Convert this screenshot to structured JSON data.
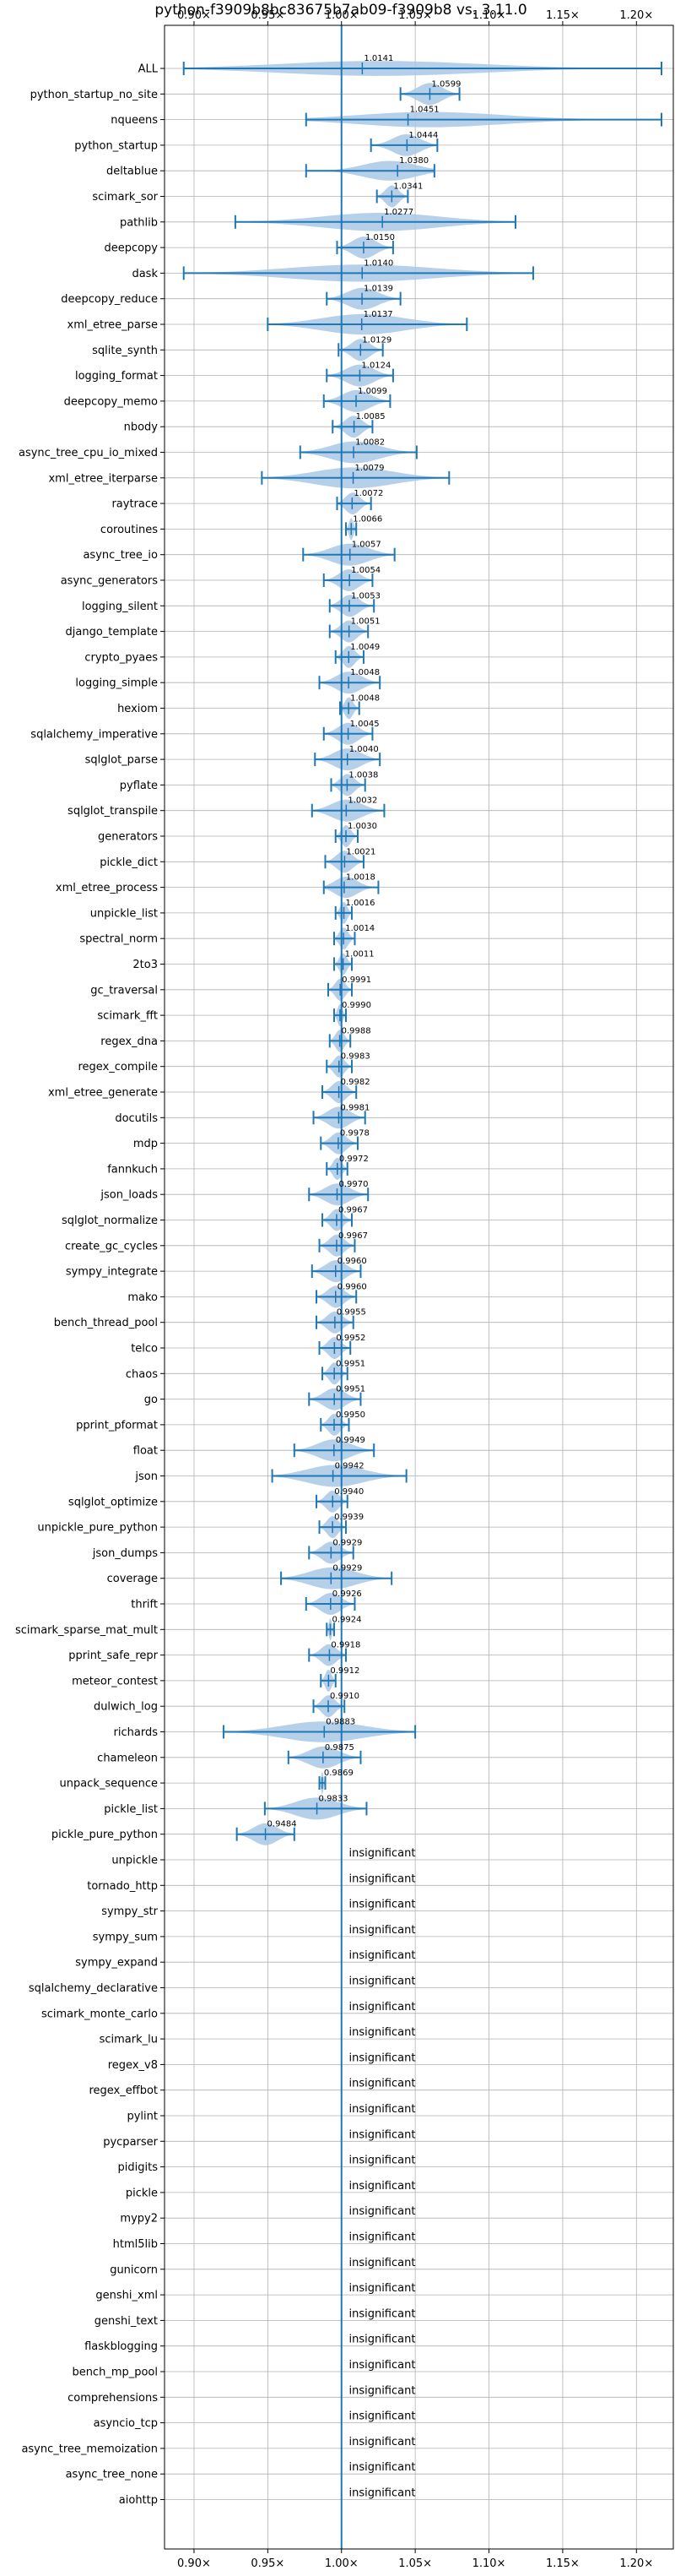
{
  "chart_data": {
    "type": "violin",
    "title": "python-f3909b8bc83675b7ab09-f3909b8 vs. 3.11.0",
    "xlim": [
      0.88,
      1.225
    ],
    "xticks": [
      0.9,
      0.95,
      1.0,
      1.05,
      1.1,
      1.15,
      1.2
    ],
    "xtick_labels": [
      "0.90×",
      "0.95×",
      "1.00×",
      "1.05×",
      "1.10×",
      "1.15×",
      "1.20×"
    ],
    "reference_line": 1.0,
    "grid": true,
    "insignificant_text": "insignificant",
    "colors": {
      "violin_fill": "#a9c8e6",
      "line": "#1f77b4",
      "grid": "#b0b0b0"
    },
    "benchmarks": [
      {
        "name": "ALL",
        "label": "1.0141",
        "value": 1.0141,
        "min": 0.893,
        "max": 1.217
      },
      {
        "name": "python_startup_no_site",
        "label": "1.0599",
        "value": 1.0599,
        "min": 1.04,
        "max": 1.08
      },
      {
        "name": "nqueens",
        "label": "1.0451",
        "value": 1.0451,
        "min": 0.976,
        "max": 1.217
      },
      {
        "name": "python_startup",
        "label": "1.0444",
        "value": 1.0444,
        "min": 1.02,
        "max": 1.065
      },
      {
        "name": "deltablue",
        "label": "1.0380",
        "value": 1.038,
        "min": 0.976,
        "max": 1.063
      },
      {
        "name": "scimark_sor",
        "label": "1.0341",
        "value": 1.0341,
        "min": 1.024,
        "max": 1.045
      },
      {
        "name": "pathlib",
        "label": "1.0277",
        "value": 1.0277,
        "min": 0.928,
        "max": 1.118
      },
      {
        "name": "deepcopy",
        "label": "1.0150",
        "value": 1.015,
        "min": 0.997,
        "max": 1.035
      },
      {
        "name": "dask",
        "label": "1.0140",
        "value": 1.014,
        "min": 0.893,
        "max": 1.13
      },
      {
        "name": "deepcopy_reduce",
        "label": "1.0139",
        "value": 1.0139,
        "min": 0.99,
        "max": 1.04
      },
      {
        "name": "xml_etree_parse",
        "label": "1.0137",
        "value": 1.0137,
        "min": 0.95,
        "max": 1.085
      },
      {
        "name": "sqlite_synth",
        "label": "1.0129",
        "value": 1.0129,
        "min": 0.998,
        "max": 1.028
      },
      {
        "name": "logging_format",
        "label": "1.0124",
        "value": 1.0124,
        "min": 0.99,
        "max": 1.035
      },
      {
        "name": "deepcopy_memo",
        "label": "1.0099",
        "value": 1.0099,
        "min": 0.988,
        "max": 1.033
      },
      {
        "name": "nbody",
        "label": "1.0085",
        "value": 1.0085,
        "min": 0.994,
        "max": 1.021
      },
      {
        "name": "async_tree_cpu_io_mixed",
        "label": "1.0082",
        "value": 1.0082,
        "min": 0.972,
        "max": 1.051
      },
      {
        "name": "xml_etree_iterparse",
        "label": "1.0079",
        "value": 1.0079,
        "min": 0.946,
        "max": 1.073
      },
      {
        "name": "raytrace",
        "label": "1.0072",
        "value": 1.0072,
        "min": 0.997,
        "max": 1.02
      },
      {
        "name": "coroutines",
        "label": "1.0066",
        "value": 1.0066,
        "min": 1.003,
        "max": 1.01
      },
      {
        "name": "async_tree_io",
        "label": "1.0057",
        "value": 1.0057,
        "min": 0.974,
        "max": 1.036
      },
      {
        "name": "async_generators",
        "label": "1.0054",
        "value": 1.0054,
        "min": 0.988,
        "max": 1.021
      },
      {
        "name": "logging_silent",
        "label": "1.0053",
        "value": 1.0053,
        "min": 0.992,
        "max": 1.022
      },
      {
        "name": "django_template",
        "label": "1.0051",
        "value": 1.0051,
        "min": 0.992,
        "max": 1.018
      },
      {
        "name": "crypto_pyaes",
        "label": "1.0049",
        "value": 1.0049,
        "min": 0.996,
        "max": 1.015
      },
      {
        "name": "logging_simple",
        "label": "1.0048",
        "value": 1.0048,
        "min": 0.985,
        "max": 1.026
      },
      {
        "name": "hexiom",
        "label": "1.0048",
        "value": 1.0048,
        "min": 0.999,
        "max": 1.012
      },
      {
        "name": "sqlalchemy_imperative",
        "label": "1.0045",
        "value": 1.0045,
        "min": 0.988,
        "max": 1.021
      },
      {
        "name": "sqlglot_parse",
        "label": "1.0040",
        "value": 1.004,
        "min": 0.982,
        "max": 1.026
      },
      {
        "name": "pyflate",
        "label": "1.0038",
        "value": 1.0038,
        "min": 0.993,
        "max": 1.016
      },
      {
        "name": "sqlglot_transpile",
        "label": "1.0032",
        "value": 1.0032,
        "min": 0.98,
        "max": 1.029
      },
      {
        "name": "generators",
        "label": "1.0030",
        "value": 1.003,
        "min": 0.996,
        "max": 1.011
      },
      {
        "name": "pickle_dict",
        "label": "1.0021",
        "value": 1.0021,
        "min": 0.989,
        "max": 1.015
      },
      {
        "name": "xml_etree_process",
        "label": "1.0018",
        "value": 1.0018,
        "min": 0.988,
        "max": 1.025
      },
      {
        "name": "unpickle_list",
        "label": "1.0016",
        "value": 1.0016,
        "min": 0.996,
        "max": 1.007
      },
      {
        "name": "spectral_norm",
        "label": "1.0014",
        "value": 1.0014,
        "min": 0.995,
        "max": 1.009
      },
      {
        "name": "2to3",
        "label": "1.0011",
        "value": 1.0011,
        "min": 0.995,
        "max": 1.007
      },
      {
        "name": "gc_traversal",
        "label": "0.9991",
        "value": 0.9991,
        "min": 0.991,
        "max": 1.007
      },
      {
        "name": "scimark_fft",
        "label": "0.9990",
        "value": 0.999,
        "min": 0.995,
        "max": 1.003
      },
      {
        "name": "regex_dna",
        "label": "0.9988",
        "value": 0.9988,
        "min": 0.992,
        "max": 1.006
      },
      {
        "name": "regex_compile",
        "label": "0.9983",
        "value": 0.9983,
        "min": 0.99,
        "max": 1.007
      },
      {
        "name": "xml_etree_generate",
        "label": "0.9982",
        "value": 0.9982,
        "min": 0.987,
        "max": 1.01
      },
      {
        "name": "docutils",
        "label": "0.9981",
        "value": 0.9981,
        "min": 0.981,
        "max": 1.016
      },
      {
        "name": "mdp",
        "label": "0.9978",
        "value": 0.9978,
        "min": 0.986,
        "max": 1.011
      },
      {
        "name": "fannkuch",
        "label": "0.9972",
        "value": 0.9972,
        "min": 0.99,
        "max": 1.004
      },
      {
        "name": "json_loads",
        "label": "0.9970",
        "value": 0.997,
        "min": 0.978,
        "max": 1.018
      },
      {
        "name": "sqlglot_normalize",
        "label": "0.9967",
        "value": 0.9967,
        "min": 0.987,
        "max": 1.007
      },
      {
        "name": "create_gc_cycles",
        "label": "0.9967",
        "value": 0.9967,
        "min": 0.985,
        "max": 1.009
      },
      {
        "name": "sympy_integrate",
        "label": "0.9960",
        "value": 0.996,
        "min": 0.98,
        "max": 1.013
      },
      {
        "name": "mako",
        "label": "0.9960",
        "value": 0.996,
        "min": 0.983,
        "max": 1.01
      },
      {
        "name": "bench_thread_pool",
        "label": "0.9955",
        "value": 0.9955,
        "min": 0.983,
        "max": 1.008
      },
      {
        "name": "telco",
        "label": "0.9952",
        "value": 0.9952,
        "min": 0.985,
        "max": 1.006
      },
      {
        "name": "chaos",
        "label": "0.9951",
        "value": 0.9951,
        "min": 0.987,
        "max": 1.004
      },
      {
        "name": "go",
        "label": "0.9951",
        "value": 0.9951,
        "min": 0.978,
        "max": 1.013
      },
      {
        "name": "pprint_pformat",
        "label": "0.9950",
        "value": 0.995,
        "min": 0.986,
        "max": 1.005
      },
      {
        "name": "float",
        "label": "0.9949",
        "value": 0.9949,
        "min": 0.968,
        "max": 1.022
      },
      {
        "name": "json",
        "label": "0.9942",
        "value": 0.9942,
        "min": 0.953,
        "max": 1.044
      },
      {
        "name": "sqlglot_optimize",
        "label": "0.9940",
        "value": 0.994,
        "min": 0.983,
        "max": 1.004
      },
      {
        "name": "unpickle_pure_python",
        "label": "0.9939",
        "value": 0.9939,
        "min": 0.985,
        "max": 1.003
      },
      {
        "name": "json_dumps",
        "label": "0.9929",
        "value": 0.9929,
        "min": 0.978,
        "max": 1.008
      },
      {
        "name": "coverage",
        "label": "0.9929",
        "value": 0.9929,
        "min": 0.959,
        "max": 1.034
      },
      {
        "name": "thrift",
        "label": "0.9926",
        "value": 0.9926,
        "min": 0.976,
        "max": 1.009
      },
      {
        "name": "scimark_sparse_mat_mult",
        "label": "0.9924",
        "value": 0.9924,
        "min": 0.99,
        "max": 0.995
      },
      {
        "name": "pprint_safe_repr",
        "label": "0.9918",
        "value": 0.9918,
        "min": 0.978,
        "max": 1.003
      },
      {
        "name": "meteor_contest",
        "label": "0.9912",
        "value": 0.9912,
        "min": 0.986,
        "max": 0.996
      },
      {
        "name": "dulwich_log",
        "label": "0.9910",
        "value": 0.991,
        "min": 0.981,
        "max": 1.002
      },
      {
        "name": "richards",
        "label": "0.9883",
        "value": 0.9883,
        "min": 0.92,
        "max": 1.05
      },
      {
        "name": "chameleon",
        "label": "0.9875",
        "value": 0.9875,
        "min": 0.964,
        "max": 1.013
      },
      {
        "name": "unpack_sequence",
        "label": "0.9869",
        "value": 0.9869,
        "min": 0.985,
        "max": 0.989
      },
      {
        "name": "pickle_list",
        "label": "0.9833",
        "value": 0.9833,
        "min": 0.948,
        "max": 1.017
      },
      {
        "name": "pickle_pure_python",
        "label": "0.9484",
        "value": 0.9484,
        "min": 0.929,
        "max": 0.968
      },
      {
        "name": "unpickle",
        "insignificant": true
      },
      {
        "name": "tornado_http",
        "insignificant": true
      },
      {
        "name": "sympy_str",
        "insignificant": true
      },
      {
        "name": "sympy_sum",
        "insignificant": true
      },
      {
        "name": "sympy_expand",
        "insignificant": true
      },
      {
        "name": "sqlalchemy_declarative",
        "insignificant": true
      },
      {
        "name": "scimark_monte_carlo",
        "insignificant": true
      },
      {
        "name": "scimark_lu",
        "insignificant": true
      },
      {
        "name": "regex_v8",
        "insignificant": true
      },
      {
        "name": "regex_effbot",
        "insignificant": true
      },
      {
        "name": "pylint",
        "insignificant": true
      },
      {
        "name": "pycparser",
        "insignificant": true
      },
      {
        "name": "pidigits",
        "insignificant": true
      },
      {
        "name": "pickle",
        "insignificant": true
      },
      {
        "name": "mypy2",
        "insignificant": true
      },
      {
        "name": "html5lib",
        "insignificant": true
      },
      {
        "name": "gunicorn",
        "insignificant": true
      },
      {
        "name": "genshi_xml",
        "insignificant": true
      },
      {
        "name": "genshi_text",
        "insignificant": true
      },
      {
        "name": "flaskblogging",
        "insignificant": true
      },
      {
        "name": "bench_mp_pool",
        "insignificant": true
      },
      {
        "name": "comprehensions",
        "insignificant": true
      },
      {
        "name": "asyncio_tcp",
        "insignificant": true
      },
      {
        "name": "async_tree_memoization",
        "insignificant": true
      },
      {
        "name": "async_tree_none",
        "insignificant": true
      },
      {
        "name": "aiohttp",
        "insignificant": true
      }
    ]
  }
}
